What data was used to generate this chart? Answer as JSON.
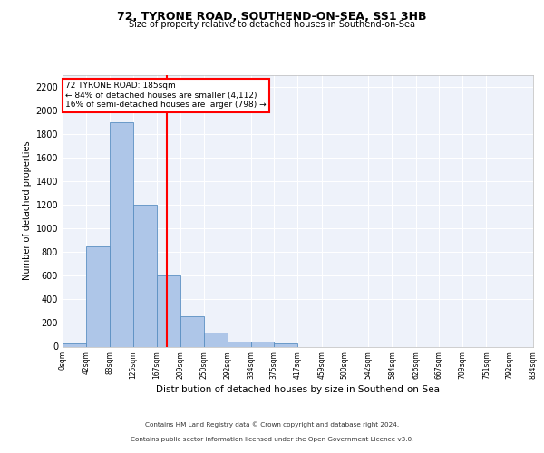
{
  "title1": "72, TYRONE ROAD, SOUTHEND-ON-SEA, SS1 3HB",
  "title2": "Size of property relative to detached houses in Southend-on-Sea",
  "xlabel": "Distribution of detached houses by size in Southend-on-Sea",
  "ylabel": "Number of detached properties",
  "bar_edges": [
    0,
    42,
    83,
    125,
    167,
    209,
    250,
    292,
    334,
    375,
    417,
    459,
    500,
    542,
    584,
    626,
    667,
    709,
    751,
    792,
    834
  ],
  "bar_heights": [
    30,
    850,
    1900,
    1200,
    600,
    260,
    120,
    40,
    40,
    30,
    0,
    0,
    0,
    0,
    0,
    0,
    0,
    0,
    0,
    0
  ],
  "bar_color": "#aec6e8",
  "bar_edge_color": "#5a8fc2",
  "red_line_x": 185,
  "ylim": [
    0,
    2300
  ],
  "annotation_text": "72 TYRONE ROAD: 185sqm\n← 84% of detached houses are smaller (4,112)\n16% of semi-detached houses are larger (798) →",
  "footnote1": "Contains HM Land Registry data © Crown copyright and database right 2024.",
  "footnote2": "Contains public sector information licensed under the Open Government Licence v3.0.",
  "tick_labels": [
    "0sqm",
    "42sqm",
    "83sqm",
    "125sqm",
    "167sqm",
    "209sqm",
    "250sqm",
    "292sqm",
    "334sqm",
    "375sqm",
    "417sqm",
    "459sqm",
    "500sqm",
    "542sqm",
    "584sqm",
    "626sqm",
    "667sqm",
    "709sqm",
    "751sqm",
    "792sqm",
    "834sqm"
  ],
  "yticks": [
    0,
    200,
    400,
    600,
    800,
    1000,
    1200,
    1400,
    1600,
    1800,
    2000,
    2200
  ],
  "background_color": "#eef2fa",
  "grid_color": "#ffffff"
}
